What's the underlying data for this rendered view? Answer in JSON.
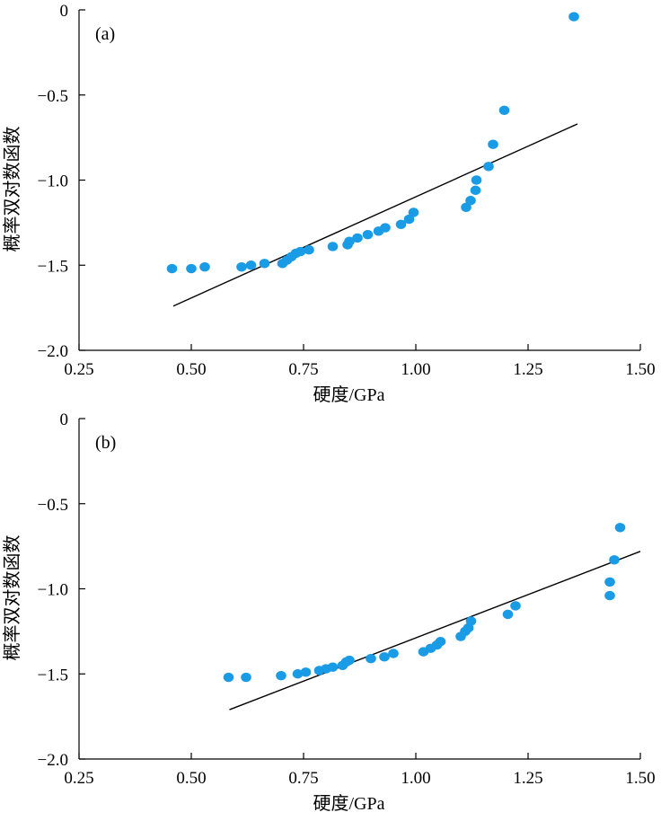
{
  "chart_data": [
    {
      "type": "scatter",
      "panel_label": "(a)",
      "xlabel": "硬度/GPa",
      "ylabel": "概率双对数函数",
      "xlim": [
        0.25,
        1.5
      ],
      "ylim": [
        -2.0,
        0
      ],
      "xticks": [
        "0.25",
        "0.50",
        "0.75",
        "1.00",
        "1.25",
        "1.50"
      ],
      "yticks": [
        "0",
        "−0.5",
        "−1.0",
        "−1.5",
        "−2.0"
      ],
      "grid": false,
      "point_color": "#1a9be6",
      "points": [
        [
          0.457,
          -1.52
        ],
        [
          0.5,
          -1.52
        ],
        [
          0.53,
          -1.51
        ],
        [
          0.612,
          -1.51
        ],
        [
          0.633,
          -1.5
        ],
        [
          0.663,
          -1.49
        ],
        [
          0.703,
          -1.49
        ],
        [
          0.713,
          -1.47
        ],
        [
          0.723,
          -1.45
        ],
        [
          0.733,
          -1.43
        ],
        [
          0.743,
          -1.42
        ],
        [
          0.762,
          -1.41
        ],
        [
          0.815,
          -1.39
        ],
        [
          0.848,
          -1.38
        ],
        [
          0.852,
          -1.36
        ],
        [
          0.87,
          -1.34
        ],
        [
          0.893,
          -1.32
        ],
        [
          0.917,
          -1.3
        ],
        [
          0.932,
          -1.28
        ],
        [
          0.967,
          -1.26
        ],
        [
          0.985,
          -1.23
        ],
        [
          0.995,
          -1.19
        ],
        [
          1.112,
          -1.16
        ],
        [
          1.122,
          -1.12
        ],
        [
          1.133,
          -1.06
        ],
        [
          1.135,
          -1.0
        ],
        [
          1.162,
          -0.92
        ],
        [
          1.172,
          -0.79
        ],
        [
          1.197,
          -0.59
        ],
        [
          1.352,
          -0.04
        ]
      ],
      "fit_line": {
        "x": [
          0.46,
          1.36
        ],
        "y": [
          -1.74,
          -0.67
        ]
      }
    },
    {
      "type": "scatter",
      "panel_label": "(b)",
      "xlabel": "硬度/GPa",
      "ylabel": "概率双对数函数",
      "xlim": [
        0.25,
        1.5
      ],
      "ylim": [
        -2.0,
        0
      ],
      "xticks": [
        "0.25",
        "0.50",
        "0.75",
        "1.00",
        "1.25",
        "1.50"
      ],
      "yticks": [
        "0",
        "−0.5",
        "−1.0",
        "−1.5",
        "−2.0"
      ],
      "grid": false,
      "point_color": "#1a9be6",
      "points": [
        [
          0.583,
          -1.52
        ],
        [
          0.622,
          -1.52
        ],
        [
          0.7,
          -1.51
        ],
        [
          0.737,
          -1.5
        ],
        [
          0.755,
          -1.49
        ],
        [
          0.785,
          -1.48
        ],
        [
          0.8,
          -1.47
        ],
        [
          0.815,
          -1.46
        ],
        [
          0.837,
          -1.45
        ],
        [
          0.845,
          -1.43
        ],
        [
          0.852,
          -1.42
        ],
        [
          0.9,
          -1.41
        ],
        [
          0.93,
          -1.4
        ],
        [
          0.95,
          -1.38
        ],
        [
          1.017,
          -1.37
        ],
        [
          1.033,
          -1.35
        ],
        [
          1.047,
          -1.33
        ],
        [
          1.055,
          -1.31
        ],
        [
          1.1,
          -1.28
        ],
        [
          1.11,
          -1.25
        ],
        [
          1.117,
          -1.23
        ],
        [
          1.123,
          -1.19
        ],
        [
          1.205,
          -1.15
        ],
        [
          1.222,
          -1.1
        ],
        [
          1.432,
          -1.04
        ],
        [
          1.432,
          -0.96
        ],
        [
          1.442,
          -0.83
        ],
        [
          1.455,
          -0.64
        ]
      ],
      "fit_line": {
        "x": [
          0.585,
          1.5
        ],
        "y": [
          -1.71,
          -0.78
        ]
      }
    }
  ]
}
